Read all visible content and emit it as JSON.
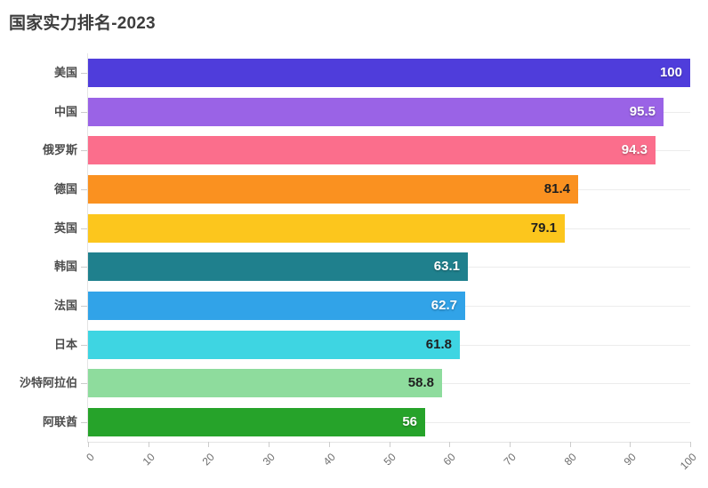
{
  "chart_data": {
    "type": "bar",
    "orientation": "horizontal",
    "title": "国家实力排名-2023",
    "categories": [
      "美国",
      "中国",
      "俄罗斯",
      "德国",
      "英国",
      "韩国",
      "法国",
      "日本",
      "沙特阿拉伯",
      "阿联酋"
    ],
    "values": [
      100,
      95.5,
      94.3,
      81.4,
      79.1,
      63.1,
      62.7,
      61.8,
      58.8,
      56
    ],
    "value_labels": [
      "100",
      "95.5",
      "94.3",
      "81.4",
      "79.1",
      "63.1",
      "62.7",
      "61.8",
      "58.8",
      "56"
    ],
    "bar_colors": [
      "#4f3ddb",
      "#9a63e6",
      "#fb6e8c",
      "#fa9120",
      "#fcc61d",
      "#1f808d",
      "#31a3e8",
      "#3ed5e2",
      "#8edc9d",
      "#26a32a"
    ],
    "value_label_colors": [
      "#ffffff",
      "#ffffff",
      "#ffffff",
      "#1f1f1f",
      "#1f1f1f",
      "#ffffff",
      "#ffffff",
      "#1f1f1f",
      "#1f1f1f",
      "#ffffff"
    ],
    "x_ticks": [
      "0",
      "10",
      "20",
      "30",
      "40",
      "50",
      "60",
      "70",
      "80",
      "90",
      "100"
    ],
    "xlim": [
      0,
      100
    ],
    "xlabel": "",
    "ylabel": "",
    "grid": "horizontal-category-lines",
    "legend": "none",
    "value_labels_position": "inside-right"
  }
}
